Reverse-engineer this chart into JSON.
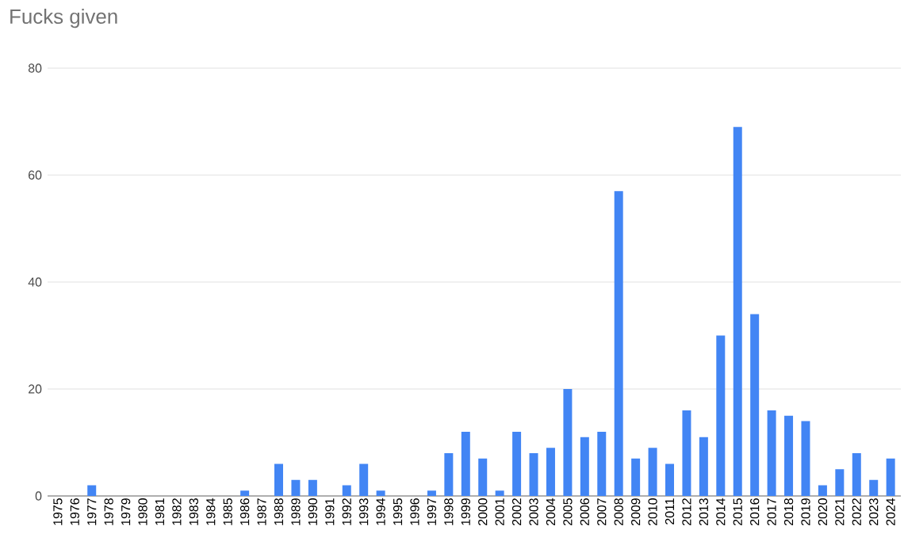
{
  "chart_data": {
    "type": "bar",
    "title": "Fucks given",
    "categories": [
      "1975",
      "1976",
      "1977",
      "1978",
      "1979",
      "1980",
      "1981",
      "1982",
      "1983",
      "1984",
      "1985",
      "1986",
      "1987",
      "1988",
      "1989",
      "1990",
      "1991",
      "1992",
      "1993",
      "1994",
      "1995",
      "1996",
      "1997",
      "1998",
      "1999",
      "2000",
      "2001",
      "2002",
      "2003",
      "2004",
      "2005",
      "2006",
      "2007",
      "2008",
      "2009",
      "2010",
      "2011",
      "2012",
      "2013",
      "2014",
      "2015",
      "2016",
      "2017",
      "2018",
      "2019",
      "2020",
      "2021",
      "2022",
      "2023",
      "2024"
    ],
    "values": [
      0,
      0,
      2,
      0,
      0,
      0,
      0,
      0,
      0,
      0,
      0,
      1,
      0,
      6,
      3,
      3,
      0,
      2,
      6,
      1,
      0,
      0,
      1,
      8,
      12,
      7,
      1,
      12,
      8,
      9,
      20,
      11,
      12,
      57,
      7,
      9,
      6,
      16,
      11,
      30,
      69,
      34,
      16,
      15,
      14,
      2,
      5,
      8,
      3,
      7
    ],
    "color": "#4285f4",
    "ylim": [
      0,
      80
    ],
    "yticks": [
      0,
      20,
      40,
      60,
      80
    ],
    "grid": "y"
  }
}
